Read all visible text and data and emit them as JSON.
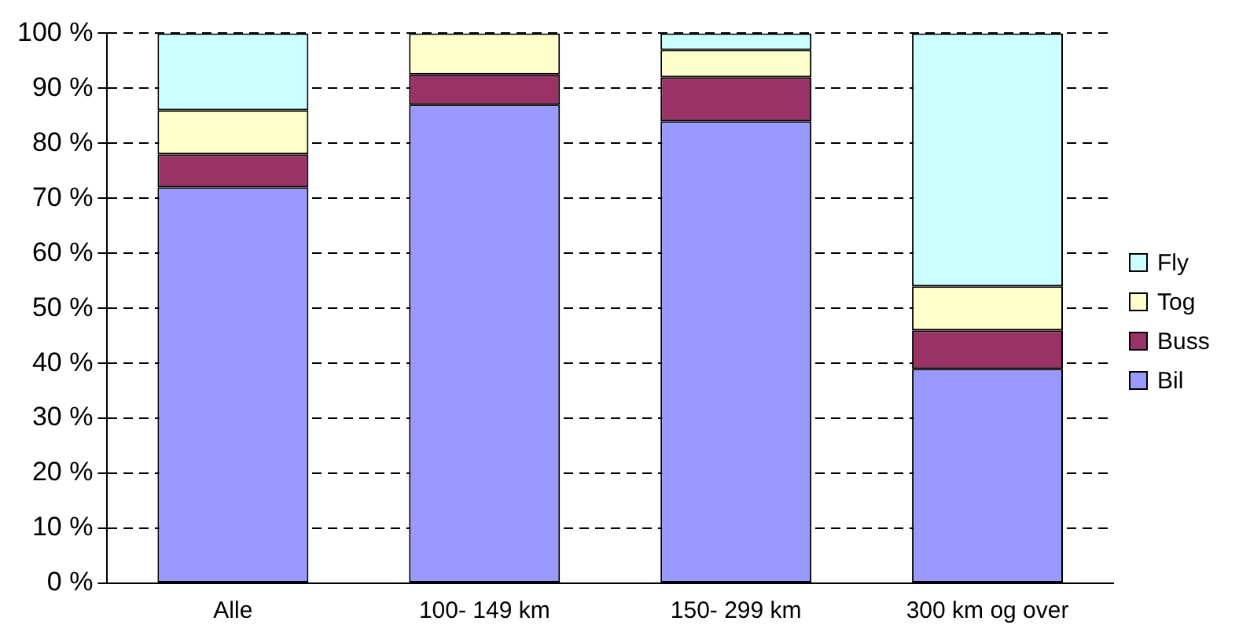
{
  "chart_data": {
    "type": "bar",
    "stacked": true,
    "categories": [
      "Alle",
      "100- 149 km",
      "150- 299 km",
      "300 km og over"
    ],
    "series": [
      {
        "name": "Bil",
        "color": "#9999ff",
        "values": [
          72,
          87,
          84,
          39
        ]
      },
      {
        "name": "Buss",
        "color": "#993366",
        "values": [
          6,
          5.5,
          8,
          7
        ]
      },
      {
        "name": "Tog",
        "color": "#ffffcc",
        "values": [
          8,
          7.5,
          5,
          8
        ]
      },
      {
        "name": "Fly",
        "color": "#ccffff",
        "values": [
          14,
          0,
          3,
          46
        ]
      }
    ],
    "ylim": [
      0,
      100
    ],
    "yticks": [
      {
        "value": 0,
        "label": "0 %"
      },
      {
        "value": 10,
        "label": "10 %"
      },
      {
        "value": 20,
        "label": "20 %"
      },
      {
        "value": 30,
        "label": "30 %"
      },
      {
        "value": 40,
        "label": "40 %"
      },
      {
        "value": 50,
        "label": "50 %"
      },
      {
        "value": 60,
        "label": "60 %"
      },
      {
        "value": 70,
        "label": "70 %"
      },
      {
        "value": 80,
        "label": "80 %"
      },
      {
        "value": 90,
        "label": "90 %"
      },
      {
        "value": 100,
        "label": "100 %"
      }
    ],
    "grid": "y",
    "legend": "right"
  }
}
